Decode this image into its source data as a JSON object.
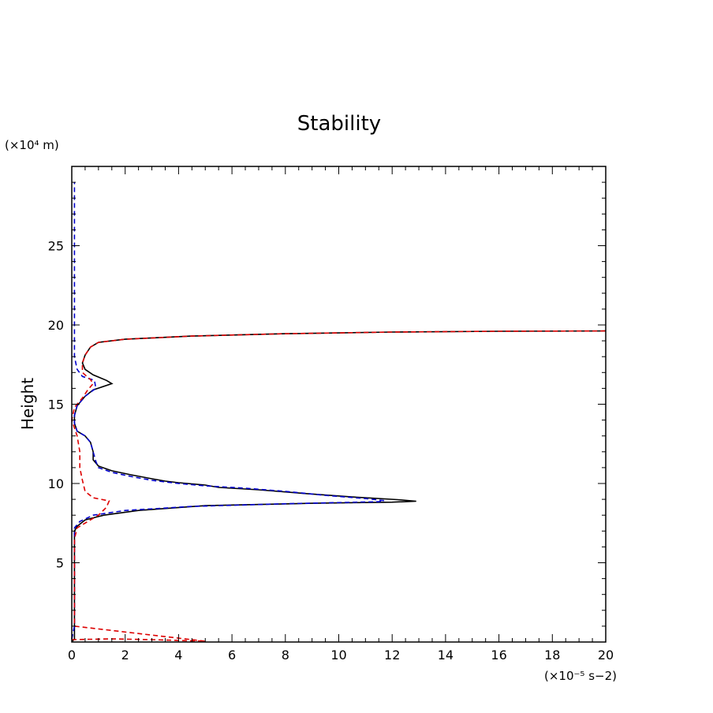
{
  "chart_data": {
    "type": "line",
    "title": "Stability",
    "xlabel": "",
    "ylabel": "Height",
    "x_unit_label": "(×10⁻⁵ s−2)",
    "y_unit_label": "(×10⁴ m)",
    "xlim": [
      0,
      20
    ],
    "ylim": [
      0,
      30
    ],
    "x_ticks": [
      0,
      2,
      4,
      6,
      8,
      10,
      12,
      14,
      16,
      18,
      20
    ],
    "y_ticks": [
      5,
      10,
      15,
      20,
      25
    ],
    "grid": false,
    "legend": "none",
    "series": [
      {
        "color": "#000000",
        "dash": "solid",
        "points": [
          [
            0,
            0
          ],
          [
            0.1,
            0.2
          ],
          [
            0.1,
            0.5
          ],
          [
            0.1,
            1
          ],
          [
            0.1,
            2
          ],
          [
            0.1,
            3
          ],
          [
            0.1,
            4
          ],
          [
            0.1,
            5
          ],
          [
            0.1,
            6
          ],
          [
            0.1,
            7
          ],
          [
            0.2,
            7.3
          ],
          [
            0.5,
            7.7
          ],
          [
            1.2,
            8.0
          ],
          [
            2.5,
            8.3
          ],
          [
            5,
            8.6
          ],
          [
            9,
            8.75
          ],
          [
            12,
            8.82
          ],
          [
            12.9,
            8.88
          ],
          [
            12.2,
            8.98
          ],
          [
            10.5,
            9.15
          ],
          [
            8.5,
            9.4
          ],
          [
            7,
            9.6
          ],
          [
            5.5,
            9.75
          ],
          [
            5,
            9.9
          ],
          [
            4,
            10.05
          ],
          [
            3.5,
            10.15
          ],
          [
            3,
            10.3
          ],
          [
            2.2,
            10.55
          ],
          [
            1.5,
            10.8
          ],
          [
            1.0,
            11.1
          ],
          [
            0.8,
            11.5
          ],
          [
            0.8,
            12
          ],
          [
            0.7,
            12.6
          ],
          [
            0.5,
            13.0
          ],
          [
            0.2,
            13.3
          ],
          [
            0.1,
            13.8
          ],
          [
            0.1,
            14.3
          ],
          [
            0.2,
            14.9
          ],
          [
            0.5,
            15.5
          ],
          [
            0.8,
            15.9
          ],
          [
            1.5,
            16.3
          ],
          [
            1.3,
            16.5
          ],
          [
            0.8,
            16.85
          ],
          [
            0.5,
            17.2
          ],
          [
            0.4,
            17.6
          ],
          [
            0.5,
            18.1
          ],
          [
            0.7,
            18.6
          ],
          [
            1.0,
            18.9
          ],
          [
            2.0,
            19.1
          ],
          [
            4.5,
            19.3
          ],
          [
            8,
            19.45
          ],
          [
            12,
            19.55
          ],
          [
            16,
            19.6
          ],
          [
            20,
            19.62
          ]
        ]
      },
      {
        "color": "#0000cc",
        "dash": "dashed",
        "points": [
          [
            0,
            0.2
          ],
          [
            0.1,
            1
          ],
          [
            0.1,
            3
          ],
          [
            0.1,
            5
          ],
          [
            0.1,
            6.5
          ],
          [
            0.1,
            7.2
          ],
          [
            0.3,
            7.6
          ],
          [
            0.8,
            8.0
          ],
          [
            2,
            8.3
          ],
          [
            4.5,
            8.55
          ],
          [
            8,
            8.72
          ],
          [
            11.5,
            8.85
          ],
          [
            11.7,
            8.92
          ],
          [
            11,
            9.05
          ],
          [
            9.5,
            9.25
          ],
          [
            8,
            9.5
          ],
          [
            6.5,
            9.7
          ],
          [
            5,
            9.85
          ],
          [
            4,
            10.0
          ],
          [
            3,
            10.2
          ],
          [
            2.2,
            10.45
          ],
          [
            1.5,
            10.7
          ],
          [
            1.0,
            11.0
          ],
          [
            0.9,
            11.4
          ],
          [
            0.8,
            12
          ],
          [
            0.7,
            12.6
          ],
          [
            0.5,
            13.0
          ],
          [
            0.2,
            13.3
          ],
          [
            0.1,
            13.8
          ],
          [
            0.1,
            14.3
          ],
          [
            0.2,
            14.9
          ],
          [
            0.5,
            15.5
          ],
          [
            0.9,
            16.0
          ],
          [
            0.85,
            16.5
          ],
          [
            0.4,
            16.75
          ],
          [
            0.2,
            17.2
          ],
          [
            0.1,
            18
          ],
          [
            0.1,
            20
          ],
          [
            0.1,
            22
          ],
          [
            0.1,
            24
          ],
          [
            0.1,
            26
          ],
          [
            0.1,
            28
          ],
          [
            0.1,
            29
          ]
        ]
      },
      {
        "color": "#dd0000",
        "dash": "dashed",
        "points": [
          [
            0,
            0.15
          ],
          [
            1.5,
            0.2
          ],
          [
            3,
            0.15
          ],
          [
            5,
            0.05
          ],
          [
            0.1,
            1
          ],
          [
            0.1,
            3
          ],
          [
            0.1,
            5
          ],
          [
            0.1,
            6.5
          ],
          [
            0.2,
            7.2
          ],
          [
            0.6,
            7.6
          ],
          [
            1.0,
            8.0
          ],
          [
            1.3,
            8.5
          ],
          [
            1.4,
            8.9
          ],
          [
            0.8,
            9.1
          ],
          [
            0.5,
            9.5
          ],
          [
            0.4,
            10.2
          ],
          [
            0.3,
            11
          ],
          [
            0.3,
            12
          ],
          [
            0.2,
            13
          ],
          [
            0.0,
            14
          ],
          [
            0.1,
            14.8
          ],
          [
            0.4,
            15.4
          ],
          [
            0.6,
            15.9
          ],
          [
            0.8,
            16.3
          ],
          [
            0.7,
            16.55
          ],
          [
            0.4,
            17.0
          ],
          [
            0.4,
            17.6
          ],
          [
            0.5,
            18.1
          ],
          [
            0.7,
            18.6
          ],
          [
            1.0,
            18.9
          ],
          [
            2.0,
            19.1
          ],
          [
            4.5,
            19.3
          ],
          [
            8,
            19.45
          ],
          [
            12,
            19.55
          ],
          [
            16,
            19.6
          ],
          [
            20,
            19.62
          ]
        ]
      }
    ]
  }
}
